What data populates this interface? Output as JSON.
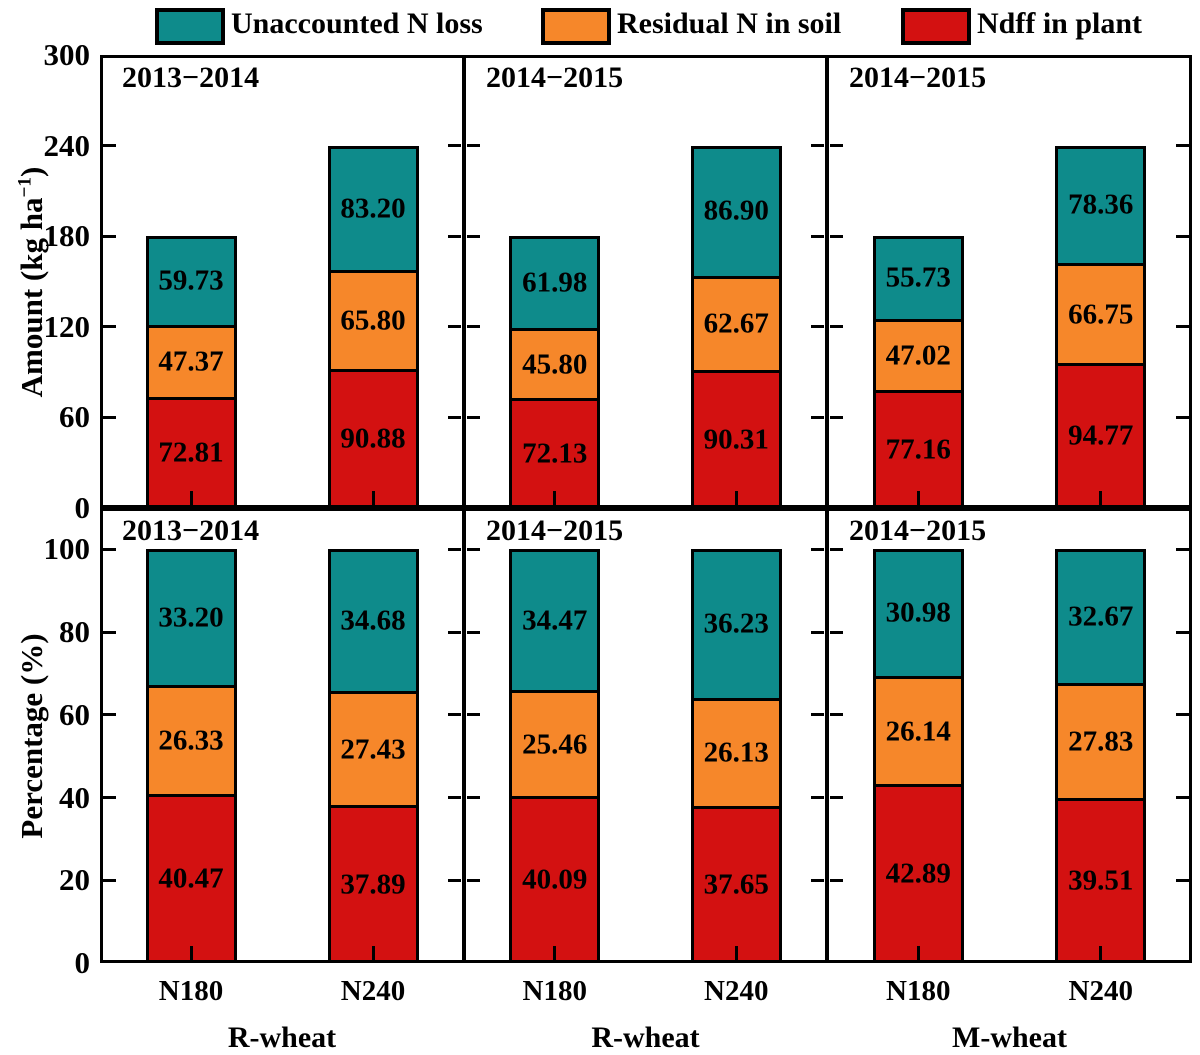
{
  "legend": {
    "items": [
      {
        "label": "Unaccounted N loss",
        "color": "#0E8B8B"
      },
      {
        "label": "Residual N in soil",
        "color": "#F6872A"
      },
      {
        "label": "Ndff in plant",
        "color": "#D31111"
      }
    ]
  },
  "chart_data": {
    "type": "bar",
    "stacked": true,
    "categories": [
      "N180",
      "N240"
    ],
    "stack_order_bottom_to_top": [
      "Ndff in plant",
      "Residual N in soil",
      "Unaccounted N loss"
    ],
    "colors": {
      "Ndff in plant": "#D31111",
      "Residual N in soil": "#F6872A",
      "Unaccounted N loss": "#0E8B8B"
    },
    "rows": [
      {
        "ylabel": "Amount (kg ha⁻¹)",
        "ylim": [
          0,
          300
        ],
        "yticks": [
          0,
          60,
          120,
          180,
          240,
          300
        ],
        "panels": [
          {
            "title": "2013−2014",
            "group_label": "R-wheat",
            "series": [
              {
                "name": "Ndff in plant",
                "values": [
                  72.81,
                  90.88
                ]
              },
              {
                "name": "Residual N in soil",
                "values": [
                  47.37,
                  65.8
                ]
              },
              {
                "name": "Unaccounted N loss",
                "values": [
                  59.73,
                  83.2
                ]
              }
            ]
          },
          {
            "title": "2014−2015",
            "group_label": "R-wheat",
            "series": [
              {
                "name": "Ndff in plant",
                "values": [
                  72.13,
                  90.31
                ]
              },
              {
                "name": "Residual N in soil",
                "values": [
                  45.8,
                  62.67
                ]
              },
              {
                "name": "Unaccounted N loss",
                "values": [
                  61.98,
                  86.9
                ]
              }
            ]
          },
          {
            "title": "2014−2015",
            "group_label": "M-wheat",
            "series": [
              {
                "name": "Ndff in plant",
                "values": [
                  77.16,
                  94.77
                ]
              },
              {
                "name": "Residual N in soil",
                "values": [
                  47.02,
                  66.75
                ]
              },
              {
                "name": "Unaccounted N loss",
                "values": [
                  55.73,
                  78.36
                ]
              }
            ]
          }
        ]
      },
      {
        "ylabel": "Percentage (%)",
        "ylim": [
          0,
          110
        ],
        "yticks": [
          0,
          20,
          40,
          60,
          80,
          100
        ],
        "panels": [
          {
            "title": "2013−2014",
            "group_label": "R-wheat",
            "series": [
              {
                "name": "Ndff in plant",
                "values": [
                  40.47,
                  37.89
                ]
              },
              {
                "name": "Residual N in soil",
                "values": [
                  26.33,
                  27.43
                ]
              },
              {
                "name": "Unaccounted N loss",
                "values": [
                  33.2,
                  34.68
                ]
              }
            ]
          },
          {
            "title": "2014−2015",
            "group_label": "R-wheat",
            "series": [
              {
                "name": "Ndff in plant",
                "values": [
                  40.09,
                  37.65
                ]
              },
              {
                "name": "Residual N in soil",
                "values": [
                  25.46,
                  26.13
                ]
              },
              {
                "name": "Unaccounted N loss",
                "values": [
                  34.47,
                  36.23
                ]
              }
            ]
          },
          {
            "title": "2014−2015",
            "group_label": "M-wheat",
            "series": [
              {
                "name": "Ndff in plant",
                "values": [
                  42.89,
                  39.51
                ]
              },
              {
                "name": "Residual N in soil",
                "values": [
                  26.14,
                  27.83
                ]
              },
              {
                "name": "Unaccounted N loss",
                "values": [
                  30.98,
                  32.67
                ]
              }
            ]
          }
        ]
      }
    ]
  }
}
